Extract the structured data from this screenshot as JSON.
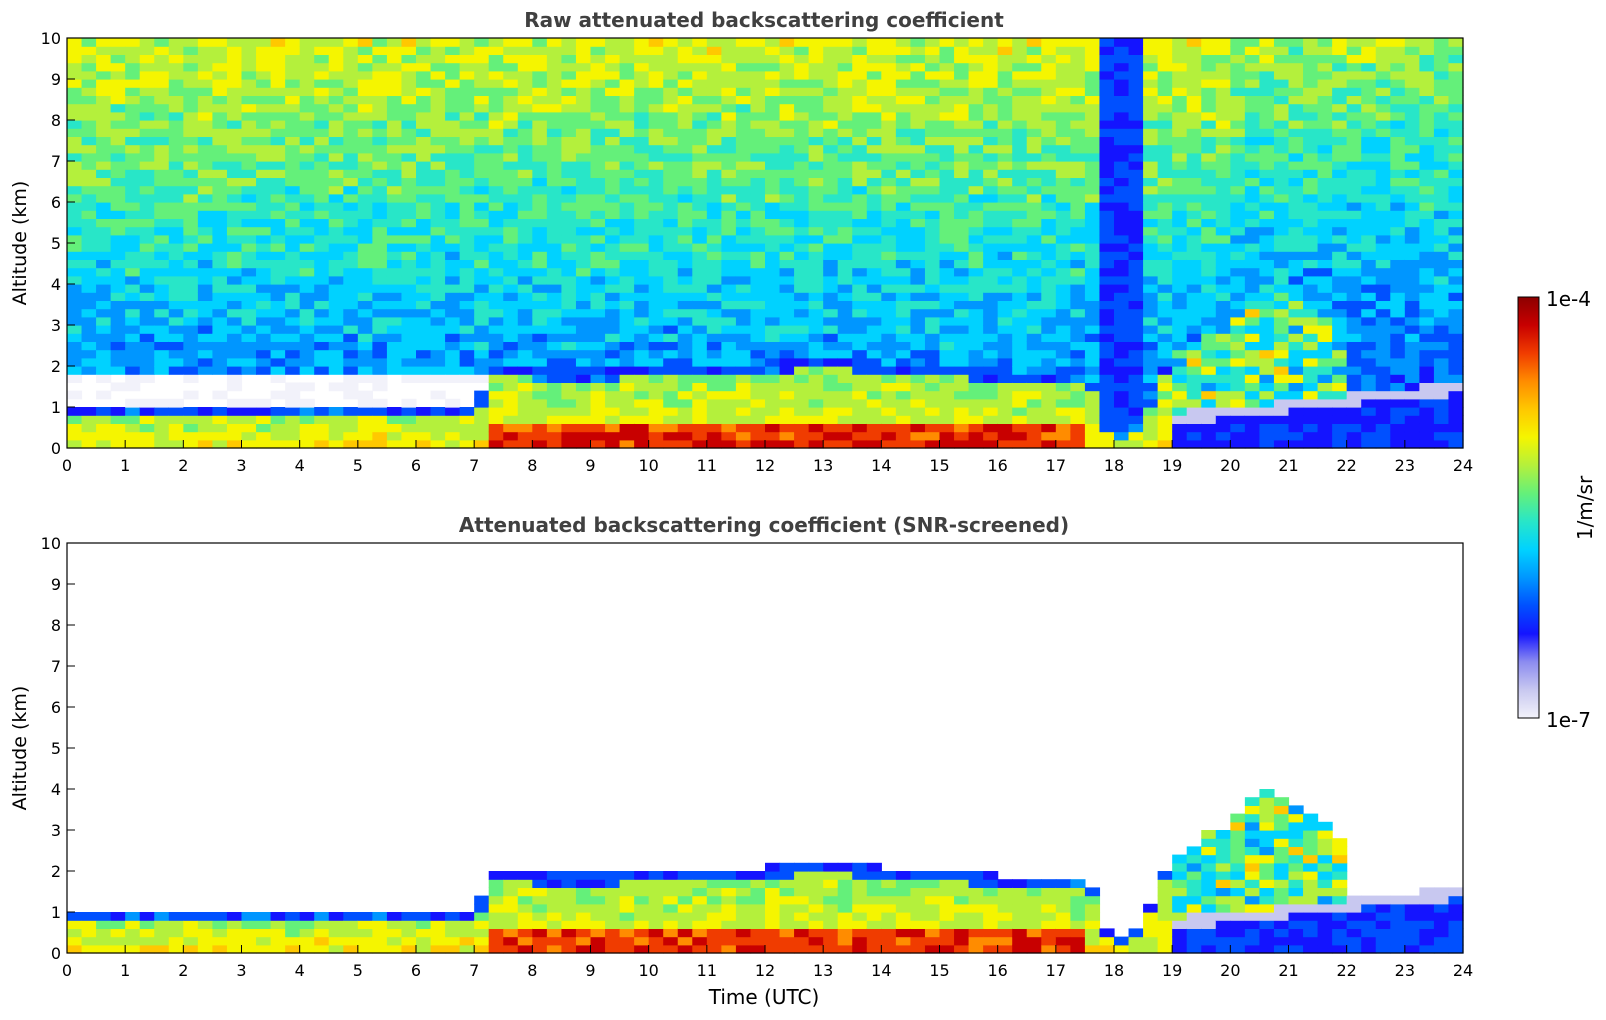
{
  "colors": {
    "colormap": [
      "#f2f2fa",
      "#c8c8f0",
      "#8c8cf0",
      "#1414ff",
      "#0050ff",
      "#0096ff",
      "#00d2ff",
      "#28e6c8",
      "#64f07a",
      "#b4f03c",
      "#f5f500",
      "#ffc800",
      "#ff8c00",
      "#f03c00",
      "#c80000",
      "#8c0000"
    ]
  },
  "chart_data": [
    {
      "type": "heatmap",
      "title": "Raw attenuated backscattering coefficient",
      "xlabel": "",
      "ylabel": "Altitude (km)",
      "xlim": [
        0,
        24
      ],
      "ylim": [
        0,
        10
      ],
      "xticks": [
        "0",
        "1",
        "2",
        "3",
        "4",
        "5",
        "6",
        "7",
        "8",
        "9",
        "10",
        "11",
        "12",
        "13",
        "14",
        "15",
        "16",
        "17",
        "18",
        "19",
        "20",
        "21",
        "22",
        "23",
        "24"
      ],
      "yticks": [
        "0",
        "1",
        "2",
        "3",
        "4",
        "5",
        "6",
        "7",
        "8",
        "9",
        "10"
      ],
      "noise_visible": true
    },
    {
      "type": "heatmap",
      "title": "Attenuated backscattering coefficient (SNR-screened)",
      "xlabel": "Time (UTC)",
      "ylabel": "Altitude (km)",
      "xlim": [
        0,
        24
      ],
      "ylim": [
        0,
        10
      ],
      "xticks": [
        "0",
        "1",
        "2",
        "3",
        "4",
        "5",
        "6",
        "7",
        "8",
        "9",
        "10",
        "11",
        "12",
        "13",
        "14",
        "15",
        "16",
        "17",
        "18",
        "19",
        "20",
        "21",
        "22",
        "23",
        "24"
      ],
      "yticks": [
        "0",
        "1",
        "2",
        "3",
        "4",
        "5",
        "6",
        "7",
        "8",
        "9",
        "10"
      ],
      "noise_visible": false
    }
  ],
  "colorbar": {
    "label": "1/m/sr",
    "max_label": "1e-4",
    "min_label": "1e-7",
    "range": [
      1e-07,
      0.0001
    ],
    "scale": "log"
  }
}
